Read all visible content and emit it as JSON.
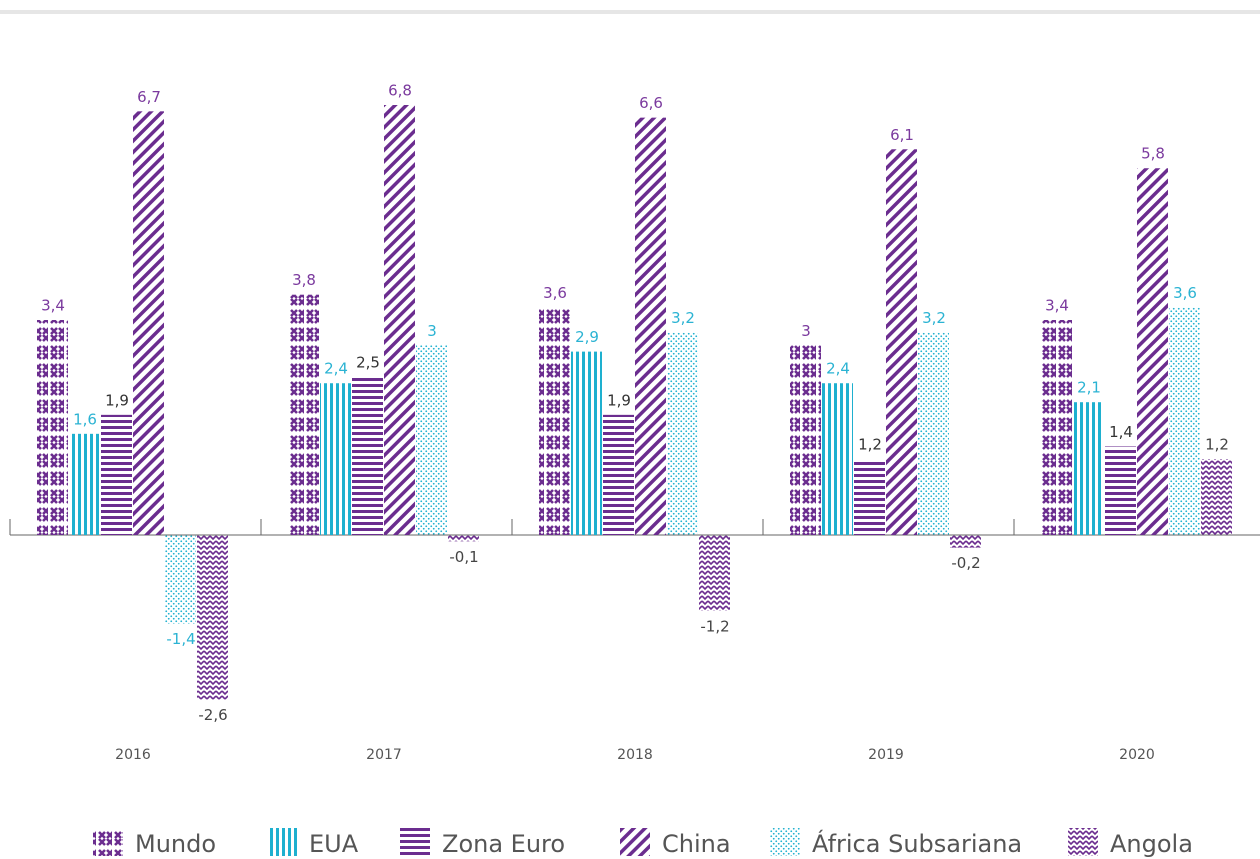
{
  "chart_data": {
    "type": "bar",
    "categories": [
      "2016",
      "2017",
      "2018",
      "2019",
      "2020"
    ],
    "series": [
      {
        "name": "Mundo",
        "color": "#6b2d8f",
        "values": [
          3.4,
          3.8,
          3.6,
          3.0,
          3.4
        ],
        "value_labels": [
          "3,4",
          "3,8",
          "3,6",
          "3",
          "3,4"
        ]
      },
      {
        "name": "EUA",
        "color": "#1eb0cf",
        "values": [
          1.6,
          2.4,
          2.9,
          2.4,
          2.1
        ],
        "value_labels": [
          "1,6",
          "2,4",
          "2,9",
          "2,4",
          "2,1"
        ]
      },
      {
        "name": "Zona Euro",
        "color": "#6b2d8f",
        "values": [
          1.9,
          2.5,
          1.9,
          1.2,
          1.4
        ],
        "value_labels": [
          "1,9",
          "2,5",
          "1,9",
          "1,2",
          "1,4"
        ]
      },
      {
        "name": "China",
        "color": "#6b2d8f",
        "values": [
          6.7,
          6.8,
          6.6,
          6.1,
          5.8
        ],
        "value_labels": [
          "6,7",
          "6,8",
          "6,6",
          "6,1",
          "5,8"
        ]
      },
      {
        "name": "África Subsariana",
        "color": "#1eb0cf",
        "values": [
          -1.4,
          3.0,
          3.2,
          3.2,
          3.6
        ],
        "value_labels": [
          "-1,4",
          "3",
          "3,2",
          "3,2",
          "3,6"
        ]
      },
      {
        "name": "Angola",
        "color": "#6b2d8f",
        "values": [
          -2.6,
          -0.1,
          -1.2,
          -0.2,
          1.2
        ],
        "value_labels": [
          "-2,6",
          "-0,1",
          "-1,2",
          "-0,2",
          "1,2"
        ]
      }
    ]
  }
}
